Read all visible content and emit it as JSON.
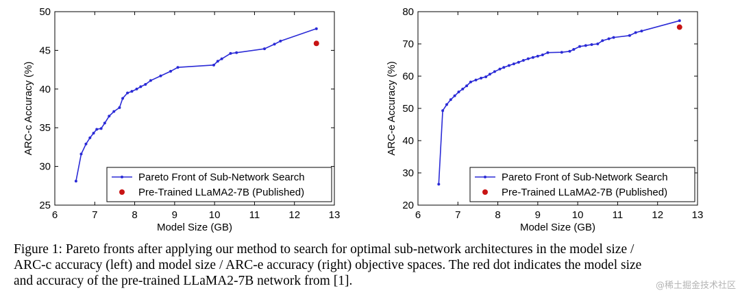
{
  "chart_data": [
    {
      "type": "line",
      "xlabel": "Model Size (GB)",
      "ylabel": "ARC-c Accuracy (%)",
      "xlim": [
        6,
        13
      ],
      "ylim": [
        25,
        50
      ],
      "xticks": [
        "6",
        "7",
        "8",
        "9",
        "10",
        "11",
        "12",
        "13"
      ],
      "yticks": [
        "25",
        "30",
        "35",
        "40",
        "45",
        "50"
      ],
      "legend_position": "bottom-right",
      "series": [
        {
          "name": "Pareto Front of Sub-Network Search",
          "style": "line-with-markers",
          "color": "#2a2ad6",
          "x": [
            6.53,
            6.66,
            6.78,
            6.88,
            6.97,
            7.05,
            7.16,
            7.25,
            7.36,
            7.48,
            7.62,
            7.7,
            7.82,
            7.93,
            8.05,
            8.15,
            8.27,
            8.4,
            8.65,
            8.9,
            9.08,
            9.98,
            10.08,
            10.18,
            10.4,
            10.55,
            11.25,
            11.5,
            11.65,
            12.55
          ],
          "y": [
            28.1,
            31.6,
            32.9,
            33.7,
            34.3,
            34.8,
            34.9,
            35.6,
            36.5,
            37.1,
            37.6,
            38.8,
            39.5,
            39.7,
            40.0,
            40.3,
            40.6,
            41.1,
            41.7,
            42.3,
            42.8,
            43.1,
            43.6,
            43.9,
            44.6,
            44.7,
            45.2,
            45.8,
            46.2,
            47.8
          ]
        },
        {
          "name": "Pre-Trained LLaMA2-7B (Published)",
          "style": "marker",
          "color": "#c81414",
          "x": [
            12.55
          ],
          "y": [
            45.9
          ]
        }
      ]
    },
    {
      "type": "line",
      "xlabel": "Model Size (GB)",
      "ylabel": "ARC-e Accuracy (%)",
      "xlim": [
        6,
        13
      ],
      "ylim": [
        20,
        80
      ],
      "xticks": [
        "6",
        "7",
        "8",
        "9",
        "10",
        "11",
        "12",
        "13"
      ],
      "yticks": [
        "20",
        "30",
        "40",
        "50",
        "60",
        "70",
        "80"
      ],
      "legend_position": "bottom-right",
      "series": [
        {
          "name": "Pareto Front of Sub-Network Search",
          "style": "line-with-markers",
          "color": "#2a2ad6",
          "x": [
            6.52,
            6.62,
            6.72,
            6.82,
            6.92,
            7.02,
            7.12,
            7.22,
            7.32,
            7.45,
            7.58,
            7.7,
            7.8,
            7.92,
            8.05,
            8.15,
            8.28,
            8.4,
            8.52,
            8.64,
            8.76,
            8.88,
            9.0,
            9.12,
            9.25,
            9.6,
            9.8,
            9.9,
            10.05,
            10.2,
            10.35,
            10.5,
            10.62,
            10.78,
            10.9,
            11.3,
            11.45,
            11.6,
            12.55
          ],
          "y": [
            26.5,
            49.3,
            51.2,
            52.7,
            53.9,
            55.1,
            56.0,
            57.0,
            58.2,
            58.8,
            59.4,
            59.8,
            60.6,
            61.4,
            62.2,
            62.7,
            63.3,
            63.8,
            64.3,
            64.9,
            65.4,
            65.8,
            66.2,
            66.6,
            67.3,
            67.4,
            67.7,
            68.3,
            69.2,
            69.5,
            69.8,
            70.0,
            71.0,
            71.6,
            72.0,
            72.6,
            73.5,
            74.0,
            77.2
          ]
        },
        {
          "name": "Pre-Trained LLaMA2-7B (Published)",
          "style": "marker",
          "color": "#c81414",
          "x": [
            12.55
          ],
          "y": [
            75.2
          ]
        }
      ]
    }
  ],
  "caption": {
    "line1": "Figure 1: Pareto fronts after applying our method to search for optimal sub-network architectures in the model size /",
    "line2": "ARC-c accuracy (left) and model size / ARC-e accuracy (right) objective spaces. The red dot indicates the model size",
    "line3": "and accuracy of the pre-trained LLaMA2-7B network from [1]."
  },
  "watermark": "@稀土掘金技术社区"
}
